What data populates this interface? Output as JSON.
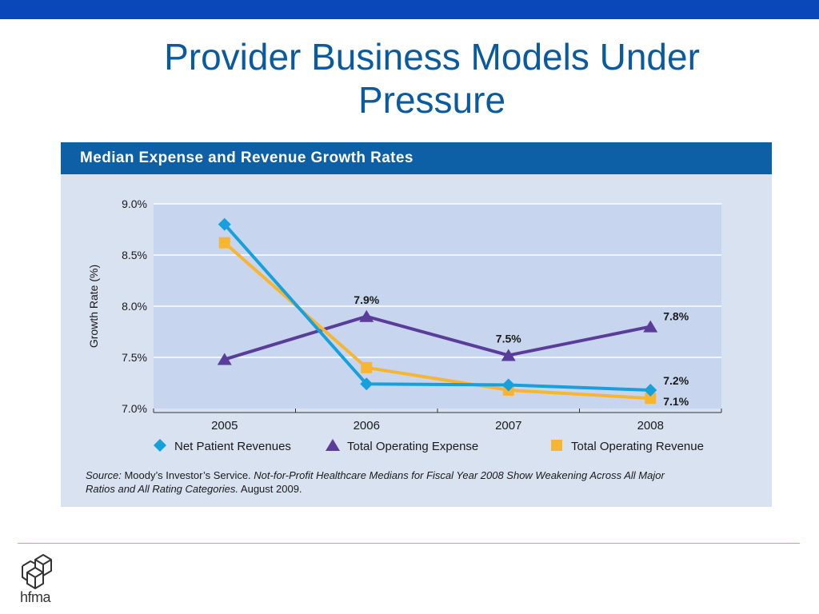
{
  "slide": {
    "title": "Provider Business Models Under Pressure"
  },
  "panel": {
    "title": "Median Expense and Revenue Growth Rates"
  },
  "source": {
    "prefix": "Source:",
    "publisher": "Moody’s Investor’s Service.",
    "report": "Not-for-Profit Healthcare Medians for Fiscal Year 2008 Show Weakening Across All Major Ratios and All Rating Categories.",
    "date": "August 2009."
  },
  "logo": {
    "text": "hfma",
    "icon": "hfma-cube-logo-icon"
  },
  "colors": {
    "top_bar": "#0a47b8",
    "title": "#0a5aa0",
    "panel_header": "#0d5fa6",
    "panel_bg": "#d9e2f1",
    "plot_bg": "#c7d6ee",
    "net_patient_revenues": "#16a0dc",
    "total_operating_expense": "#5a3d9a",
    "total_operating_revenue": "#f7b531",
    "footer_rule": "#f0a030"
  },
  "chart_data": {
    "type": "line",
    "title": "Median Expense and Revenue Growth Rates",
    "xlabel": "",
    "ylabel": "Growth Rate (%)",
    "categories": [
      "2005",
      "2006",
      "2007",
      "2008"
    ],
    "ylim": [
      7.0,
      9.0
    ],
    "yticks": [
      "7.0%",
      "7.5%",
      "8.0%",
      "8.5%",
      "9.0%"
    ],
    "grid": true,
    "legend_position": "bottom",
    "series": [
      {
        "name": "Net Patient Revenues",
        "marker": "diamond",
        "color": "#16a0dc",
        "values": [
          8.8,
          7.24,
          7.23,
          7.18
        ],
        "labels": [
          "",
          "",
          "",
          "7.2%"
        ]
      },
      {
        "name": "Total Operating Expense",
        "marker": "triangle",
        "color": "#5a3d9a",
        "values": [
          7.48,
          7.9,
          7.52,
          7.8
        ],
        "labels": [
          "",
          "7.9%",
          "7.5%",
          "7.8%"
        ]
      },
      {
        "name": "Total Operating Revenue",
        "marker": "square",
        "color": "#f7b531",
        "values": [
          8.62,
          7.4,
          7.18,
          7.1
        ],
        "labels": [
          "",
          "",
          "",
          "7.1%"
        ]
      }
    ]
  }
}
